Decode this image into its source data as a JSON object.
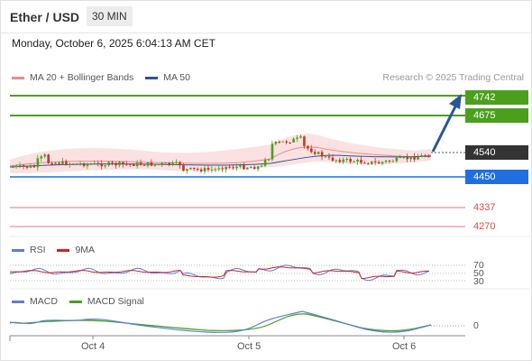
{
  "header": {
    "title": "Ether / USD",
    "timeframe": "30 MIN"
  },
  "datetime": "Monday, October 6, 2025 6:04:13 AM CET",
  "legend": {
    "items": [
      {
        "label": "MA 20 + Bollinger Bands",
        "color": "#f08a8a"
      },
      {
        "label": "MA 50",
        "color": "#2b5597"
      }
    ],
    "credit": "Research © 2025 Trading Central"
  },
  "levels": [
    {
      "label": "4742",
      "color": "#4aa01c",
      "style": "tag"
    },
    {
      "label": "4675",
      "color": "#4aa01c",
      "style": "tag"
    },
    {
      "label": "4540",
      "color": "#333333",
      "style": "tag"
    },
    {
      "label": "4450",
      "color": "#1f6fe0",
      "style": "tag"
    },
    {
      "label": "4337",
      "color": "#e04848",
      "style": "plain"
    },
    {
      "label": "4270",
      "color": "#e04848",
      "style": "plain"
    }
  ],
  "rsi": {
    "legend": [
      {
        "label": "RSI",
        "color": "#5b7fd6"
      },
      {
        "label": "9MA",
        "color": "#d62020"
      }
    ],
    "levels": [
      "70",
      "50",
      "30"
    ]
  },
  "macd": {
    "legend": [
      {
        "label": "MACD",
        "color": "#5b7fd6"
      },
      {
        "label": "MACD Signal",
        "color": "#4aa01c"
      }
    ],
    "levels": [
      "0"
    ]
  },
  "x_axis": {
    "labels": [
      "Oct 4",
      "Oct 5",
      "Oct 6"
    ]
  },
  "colors": {
    "bull": "#4aa01c",
    "bear": "#c0392b",
    "arrow": "#2b5597"
  }
}
